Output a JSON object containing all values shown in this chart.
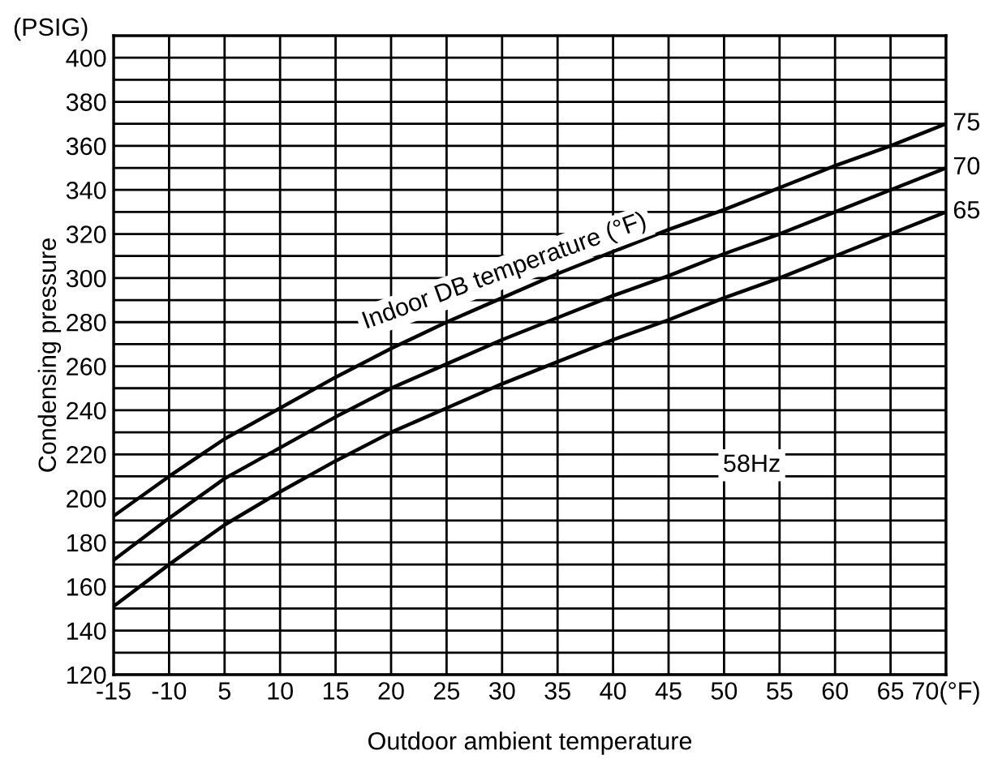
{
  "chart_data": {
    "type": "line",
    "xlabel": "Outdoor ambient temperature",
    "ylabel": "Condensing pressure",
    "categories": [
      "-15",
      "-10",
      "5",
      "10",
      "15",
      "20",
      "25",
      "30",
      "35",
      "40",
      "45",
      "50",
      "55",
      "60",
      "65",
      "70(°F)"
    ],
    "series": [
      {
        "name": "75",
        "color": "#000000",
        "values": [
          192,
          210,
          227,
          241,
          255,
          268,
          280,
          291,
          302,
          312,
          322,
          331,
          341,
          351,
          360,
          370
        ]
      },
      {
        "name": "70",
        "color": "#000000",
        "values": [
          172,
          191,
          209,
          223,
          237,
          250,
          261,
          272,
          282,
          292,
          301,
          311,
          320,
          330,
          340,
          350
        ]
      },
      {
        "name": "65",
        "color": "#000000",
        "values": [
          151,
          170,
          188,
          203,
          217,
          230,
          241,
          252,
          262,
          272,
          281,
          291,
          300,
          310,
          320,
          330
        ]
      }
    ],
    "ylim": [
      120,
      410
    ],
    "yticks": [
      120,
      {
        "value": 130,
        "label": null
      },
      140,
      {
        "value": 150,
        "label": null
      },
      160,
      {
        "value": 170,
        "label": null
      },
      180,
      {
        "value": 190,
        "label": null
      },
      200,
      {
        "value": 210,
        "label": null
      },
      220,
      {
        "value": 230,
        "label": null
      },
      240,
      {
        "value": 250,
        "label": null
      },
      260,
      {
        "value": 270,
        "label": null
      },
      280,
      {
        "value": 290,
        "label": null
      },
      300,
      {
        "value": 310,
        "label": null
      },
      320,
      {
        "value": 330,
        "label": null
      },
      340,
      {
        "value": 350,
        "label": null
      },
      360,
      {
        "value": 370,
        "label": null
      },
      380,
      {
        "value": 390,
        "label": null
      },
      400
    ],
    "grid": true,
    "marker": "none",
    "line_style": "solid",
    "annotations": [
      "(PSIG)",
      "Indoor DB temperature (°F)",
      "58Hz"
    ]
  }
}
